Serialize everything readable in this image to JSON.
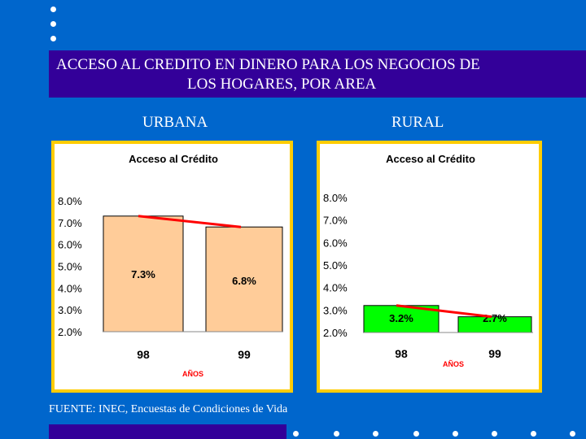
{
  "slide": {
    "title_line1": "ACCESO AL CREDITO EN DINERO PARA LOS NEGOCIOS DE",
    "title_line2": "LOS HOGARES, POR AREA",
    "label_urbana": "URBANA",
    "label_rural": "RURAL",
    "footer": "FUENTE: INEC, Encuestas de Condiciones de Vida",
    "colors": {
      "background": "#0066cc",
      "title_band": "#330099",
      "panel_border": "#ffcc00",
      "urbana_bar": "#ffcc99",
      "rural_bar": "#00ff00",
      "trend": "#ff0000",
      "axis_label": "#ff0000"
    }
  },
  "chart_data": [
    {
      "type": "bar",
      "title": "Acceso al Crédito",
      "xlabel": "AÑOS",
      "ylabel": "",
      "categories": [
        "98",
        "99"
      ],
      "values": [
        7.3,
        6.8
      ],
      "value_labels": [
        "7.3%",
        "6.8%"
      ],
      "ylim": [
        2.0,
        8.0
      ],
      "yticks": [
        "8.0%",
        "7.0%",
        "6.0%",
        "5.0%",
        "4.0%",
        "3.0%",
        "2.0%"
      ],
      "trend_line": true,
      "bar_color": "#ffcc99",
      "grid": false
    },
    {
      "type": "bar",
      "title": "Acceso al Crédito",
      "xlabel": "AÑOS",
      "ylabel": "",
      "categories": [
        "98",
        "99"
      ],
      "values": [
        3.2,
        2.7
      ],
      "value_labels": [
        "3.2%",
        "2.7%"
      ],
      "ylim": [
        2.0,
        8.0
      ],
      "yticks": [
        "8.0%",
        "7.0%",
        "6.0%",
        "5.0%",
        "4.0%",
        "3.0%",
        "2.0%"
      ],
      "trend_line": true,
      "bar_color": "#00ff00",
      "grid": false
    }
  ]
}
